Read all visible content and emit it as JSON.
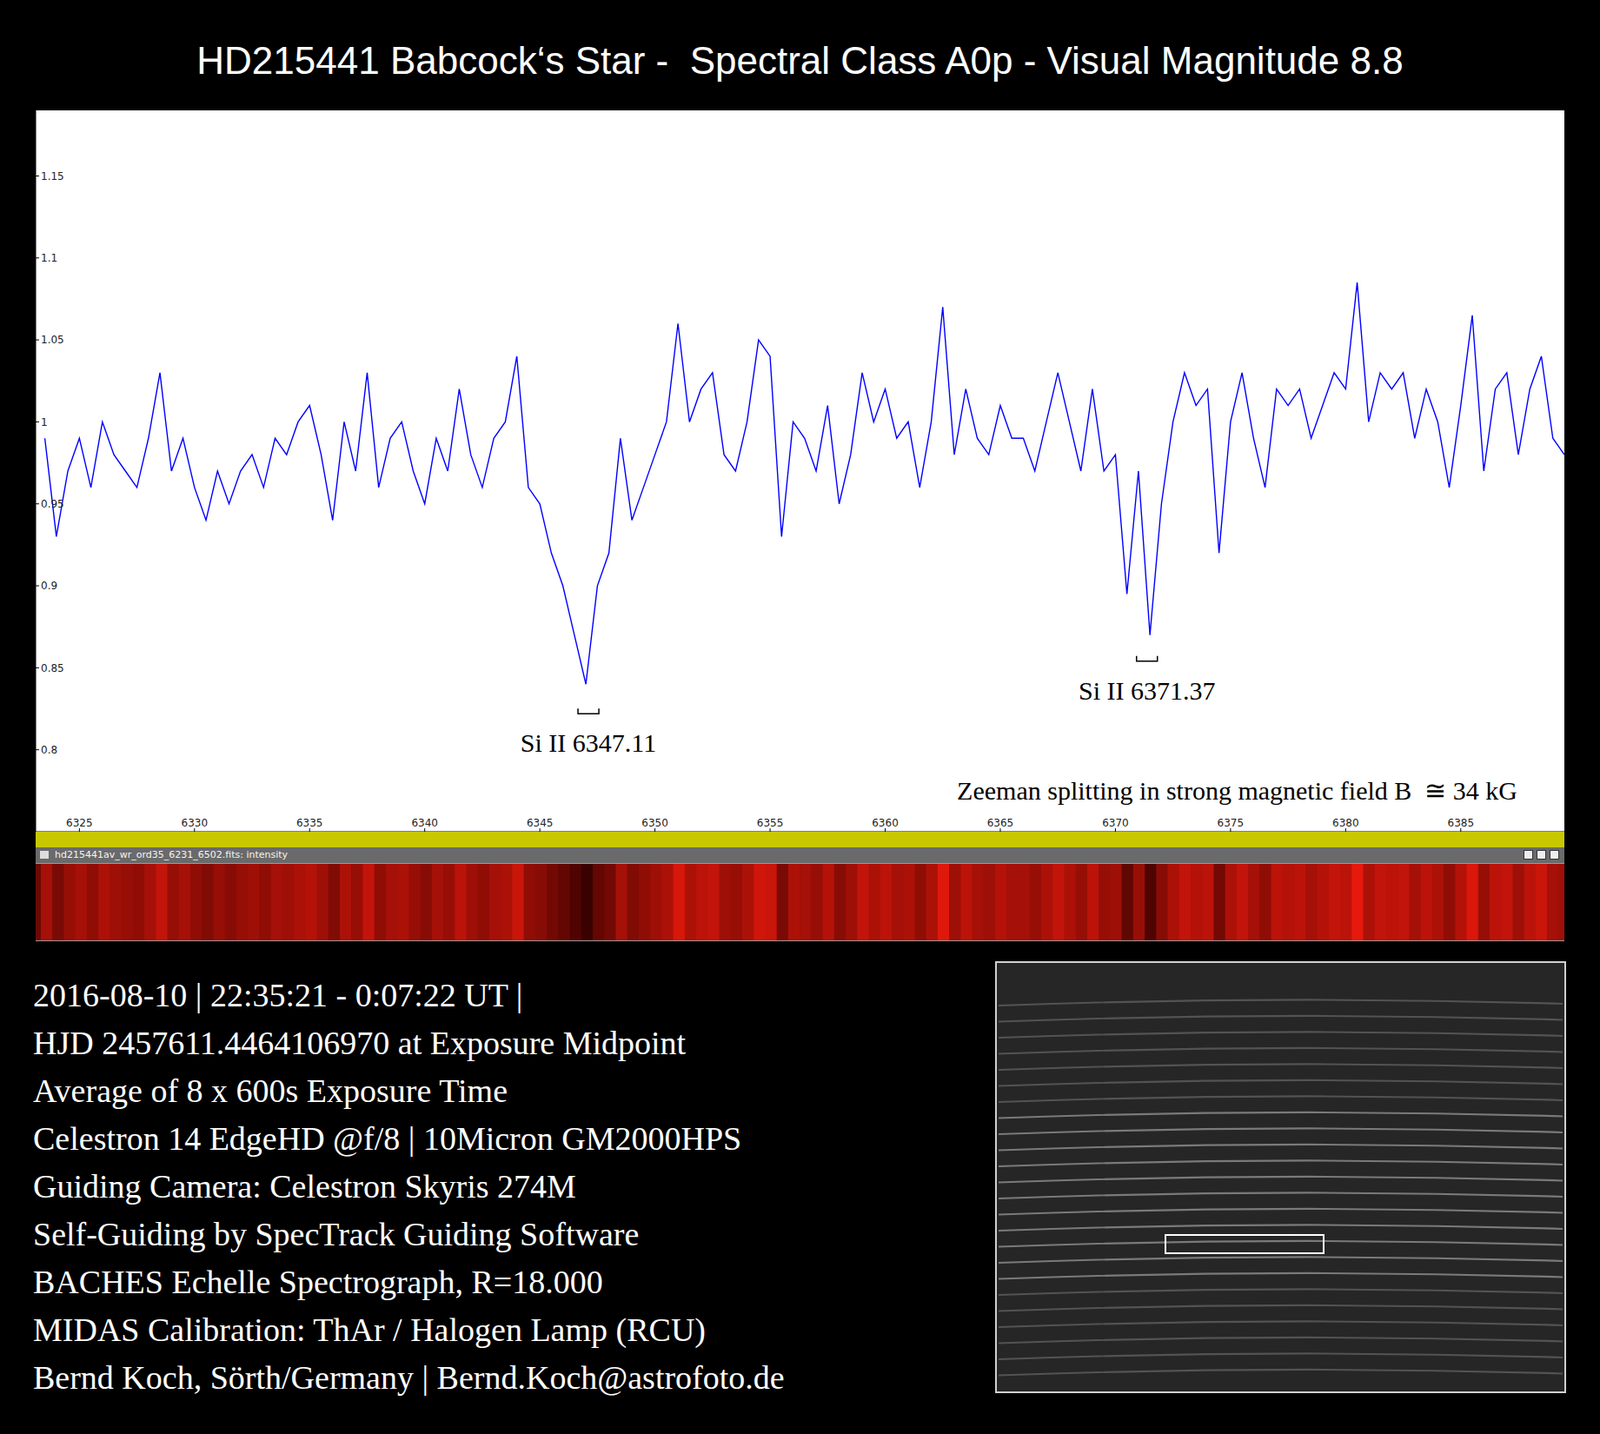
{
  "chart_data": {
    "type": "line",
    "title": "HD215441 Babcock‘s Star -  Spectral Class A0p - Visual Magnitude 8.8",
    "x": [
      6323.5,
      6324.0,
      6324.5,
      6325.0,
      6325.5,
      6326.0,
      6326.5,
      6327.0,
      6327.5,
      6328.0,
      6328.5,
      6329.0,
      6329.5,
      6330.0,
      6330.5,
      6331.0,
      6331.5,
      6332.0,
      6332.5,
      6333.0,
      6333.5,
      6334.0,
      6334.5,
      6335.0,
      6335.5,
      6336.0,
      6336.5,
      6337.0,
      6337.5,
      6338.0,
      6338.5,
      6339.0,
      6339.5,
      6340.0,
      6340.5,
      6341.0,
      6341.5,
      6342.0,
      6342.5,
      6343.0,
      6343.5,
      6344.0,
      6344.5,
      6345.0,
      6345.5,
      6346.0,
      6346.5,
      6347.0,
      6347.5,
      6348.0,
      6348.5,
      6349.0,
      6349.5,
      6350.0,
      6350.5,
      6351.0,
      6351.5,
      6352.0,
      6352.5,
      6353.0,
      6353.5,
      6354.0,
      6354.5,
      6355.0,
      6355.5,
      6356.0,
      6356.5,
      6357.0,
      6357.5,
      6358.0,
      6358.5,
      6359.0,
      6359.5,
      6360.0,
      6360.5,
      6361.0,
      6361.5,
      6362.0,
      6362.5,
      6363.0,
      6363.5,
      6364.0,
      6364.5,
      6365.0,
      6365.5,
      6366.0,
      6366.5,
      6367.0,
      6367.5,
      6368.0,
      6368.5,
      6369.0,
      6369.5,
      6370.0,
      6370.5,
      6371.0,
      6371.5,
      6372.0,
      6372.5,
      6373.0,
      6373.5,
      6374.0,
      6374.5,
      6375.0,
      6375.5,
      6376.0,
      6376.5,
      6377.0,
      6377.5,
      6378.0,
      6378.5,
      6379.0,
      6379.5,
      6380.0,
      6380.5,
      6381.0,
      6381.5,
      6382.0,
      6382.5,
      6383.0,
      6383.5,
      6384.0,
      6384.5,
      6385.0,
      6385.5,
      6386.0,
      6386.5,
      6387.0,
      6387.5,
      6388.0,
      6388.5,
      6389.0,
      6389.5
    ],
    "values": [
      0.99,
      0.93,
      0.97,
      0.99,
      0.96,
      1.0,
      0.98,
      0.97,
      0.96,
      0.99,
      1.03,
      0.97,
      0.99,
      0.96,
      0.94,
      0.97,
      0.95,
      0.97,
      0.98,
      0.96,
      0.99,
      0.98,
      1.0,
      1.01,
      0.98,
      0.94,
      1.0,
      0.97,
      1.03,
      0.96,
      0.99,
      1.0,
      0.97,
      0.95,
      0.99,
      0.97,
      1.02,
      0.98,
      0.96,
      0.99,
      1.0,
      1.04,
      0.96,
      0.95,
      0.92,
      0.9,
      0.87,
      0.84,
      0.9,
      0.92,
      0.99,
      0.94,
      0.96,
      0.98,
      1.0,
      1.06,
      1.0,
      1.02,
      1.03,
      0.98,
      0.97,
      1.0,
      1.05,
      1.04,
      0.93,
      1.0,
      0.99,
      0.97,
      1.01,
      0.95,
      0.98,
      1.03,
      1.0,
      1.02,
      0.99,
      1.0,
      0.96,
      1.0,
      1.07,
      0.98,
      1.02,
      0.99,
      0.98,
      1.01,
      0.99,
      0.99,
      0.97,
      1.0,
      1.03,
      1.0,
      0.97,
      1.02,
      0.97,
      0.98,
      0.895,
      0.97,
      0.87,
      0.95,
      1.0,
      1.03,
      1.01,
      1.02,
      0.92,
      1.0,
      1.03,
      0.99,
      0.96,
      1.02,
      1.01,
      1.02,
      0.99,
      1.01,
      1.03,
      1.02,
      1.085,
      1.0,
      1.03,
      1.02,
      1.03,
      0.99,
      1.02,
      1.0,
      0.96,
      1.01,
      1.065,
      0.97,
      1.02,
      1.03,
      0.98,
      1.02,
      1.04,
      0.99,
      0.98
    ],
    "color": "#0000ff",
    "xlim": [
      6323.1,
      6389.5
    ],
    "ylim": [
      0.75,
      1.19
    ],
    "xticks": [
      6325,
      6330,
      6335,
      6340,
      6345,
      6350,
      6355,
      6360,
      6365,
      6370,
      6375,
      6380,
      6385
    ],
    "yticks": [
      0.8,
      0.85,
      0.9,
      0.95,
      1,
      1.05,
      1.1,
      1.15
    ],
    "grid": false,
    "annotations": [
      {
        "text": "Si II 6347.11",
        "x": 6347.11,
        "y": 0.822
      },
      {
        "text": "Si II 6371.37",
        "x": 6371.37,
        "y": 0.854
      }
    ],
    "note": "Zeeman splitting in strong magnetic field B  ≅ 34 kG"
  },
  "window_title": "hd215441av_wr_ord35_6231_6502.fits: intensity",
  "caption_lines": [
    "2016-08-10 | 22:35:21 - 0:07:22 UT |",
    "HJD 2457611.4464106970 at Exposure Midpoint",
    "Average of 8 x 600s Exposure Time",
    "Celestron 14 EdgeHD @f/8 | 10Micron GM2000HPS",
    "Guiding Camera: Celestron Skyris 274M",
    "Self-Guiding by SpecTrack Guiding Software",
    "BACHES Echelle Spectrograph, R=18.000",
    "MIDAS Calibration: ThAr / Halogen Lamp (RCU)",
    "Bernd Koch, Sörth/Germany | Bernd.Koch@astrofoto.de"
  ]
}
